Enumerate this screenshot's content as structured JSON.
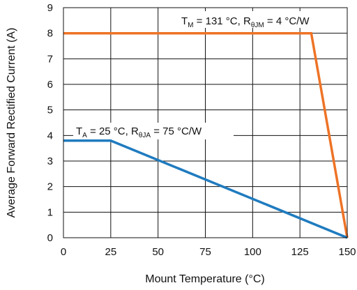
{
  "chart_data": {
    "type": "line",
    "xlabel": "Mount Temperature (°C)",
    "ylabel": "Average Forward Rectified Current (A)",
    "xlim": [
      0,
      150
    ],
    "ylim": [
      0,
      9
    ],
    "xticks": [
      0,
      25,
      50,
      75,
      100,
      125,
      150
    ],
    "yticks": [
      0,
      1,
      2,
      3,
      4,
      5,
      6,
      7,
      8,
      9
    ],
    "grid": true,
    "series": [
      {
        "color": "#ee7326",
        "x": [
          0,
          131,
          150
        ],
        "y": [
          8,
          8,
          0
        ],
        "label_parts": {
          "a": "T",
          "a_sub": "M",
          "b": " = 131 °C, R",
          "b_sub": "θJM",
          "c": " = 4 °C/W"
        }
      },
      {
        "color": "#1f7bbf",
        "x": [
          0,
          25,
          150
        ],
        "y": [
          3.8,
          3.8,
          0
        ],
        "label_parts": {
          "a": "T",
          "a_sub": "A",
          "b": " = 25 °C, R",
          "b_sub": "θJA",
          "c": " = 75 °C/W"
        }
      }
    ]
  }
}
